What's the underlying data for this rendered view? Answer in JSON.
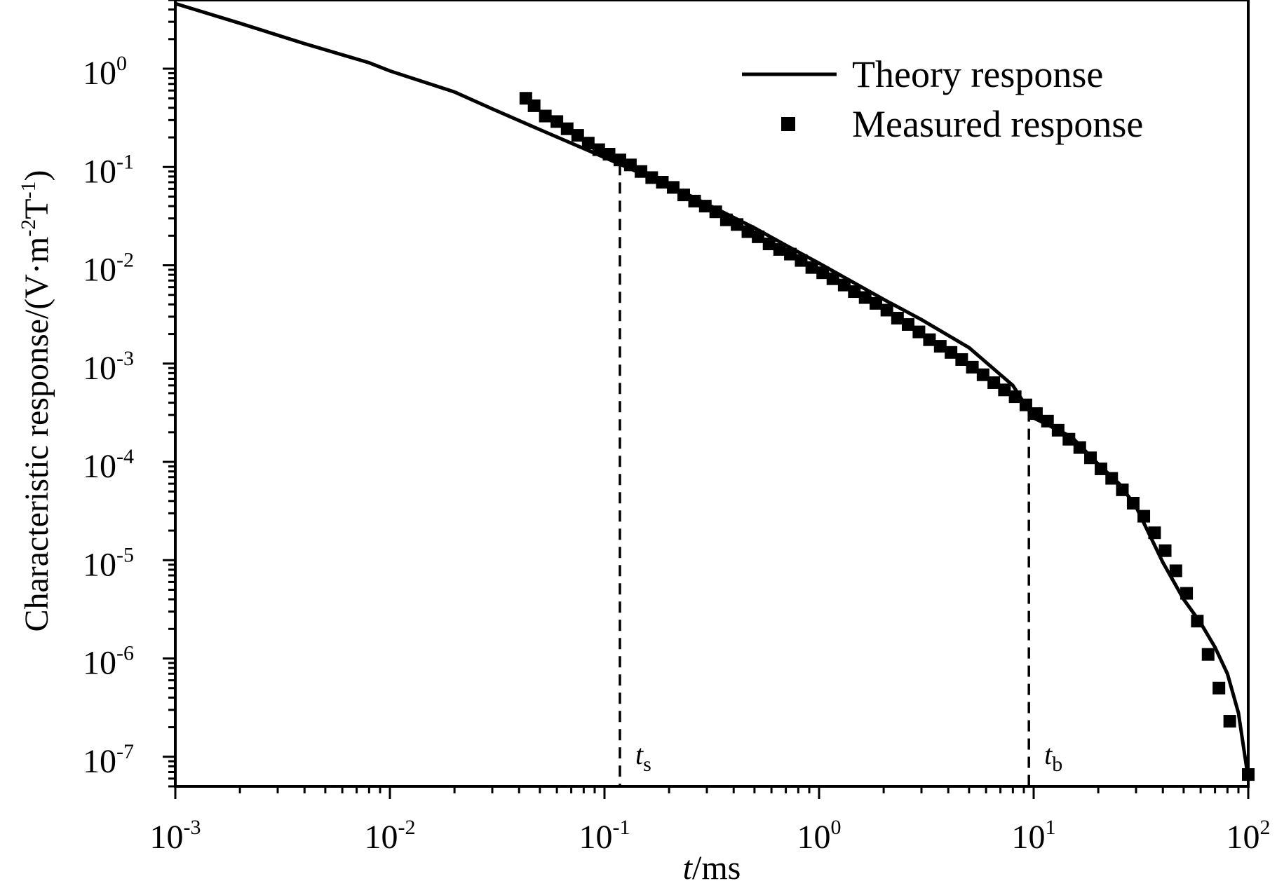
{
  "chart_data": {
    "type": "line",
    "xscale": "log",
    "yscale": "log",
    "xlim": [
      0.001,
      100
    ],
    "ylim": [
      5e-08,
      5
    ],
    "xticks": [
      {
        "base": "10",
        "exp": "-3",
        "value": 0.001
      },
      {
        "base": "10",
        "exp": "-2",
        "value": 0.01
      },
      {
        "base": "10",
        "exp": "-1",
        "value": 0.1
      },
      {
        "base": "10",
        "exp": "0",
        "value": 1
      },
      {
        "base": "10",
        "exp": "1",
        "value": 10
      },
      {
        "base": "10",
        "exp": "2",
        "value": 100
      }
    ],
    "yticks": [
      {
        "base": "10",
        "exp": "0",
        "value": 1
      },
      {
        "base": "10",
        "exp": "-1",
        "value": 0.1
      },
      {
        "base": "10",
        "exp": "-2",
        "value": 0.01
      },
      {
        "base": "10",
        "exp": "-3",
        "value": 0.001
      },
      {
        "base": "10",
        "exp": "-4",
        "value": 0.0001
      },
      {
        "base": "10",
        "exp": "-5",
        "value": 1e-05
      },
      {
        "base": "10",
        "exp": "-6",
        "value": 1e-06
      },
      {
        "base": "10",
        "exp": "-7",
        "value": 1e-07
      }
    ],
    "xlabel": {
      "italic": "t",
      "rest": "/ms"
    },
    "ylabel": {
      "main": "Characteristic response/(V·m",
      "sup1": "-2",
      "mid": "T",
      "sup2": "-1",
      "end": ")"
    },
    "grid": false,
    "legend_position": "top-right",
    "series": [
      {
        "name": "Theory response",
        "style": "line",
        "color": "#000000",
        "points": [
          [
            0.001,
            4.6
          ],
          [
            0.002,
            2.9
          ],
          [
            0.004,
            1.8
          ],
          [
            0.008,
            1.15
          ],
          [
            0.01,
            0.95
          ],
          [
            0.02,
            0.58
          ],
          [
            0.03,
            0.39
          ],
          [
            0.05,
            0.24
          ],
          [
            0.1,
            0.125
          ],
          [
            0.15,
            0.085
          ],
          [
            0.2,
            0.065
          ],
          [
            0.3,
            0.042
          ],
          [
            0.5,
            0.024
          ],
          [
            0.7,
            0.016
          ],
          [
            1,
            0.0105
          ],
          [
            2,
            0.0045
          ],
          [
            3,
            0.0028
          ],
          [
            5,
            0.00145
          ],
          [
            8,
            0.0006
          ],
          [
            10,
            0.00028
          ],
          [
            15,
            0.00018
          ],
          [
            20,
            9.5e-05
          ],
          [
            25,
            6e-05
          ],
          [
            30,
            3.5e-05
          ],
          [
            40,
            9.5e-06
          ],
          [
            50,
            4e-06
          ],
          [
            60,
            2.3e-06
          ],
          [
            70,
            1.3e-06
          ],
          [
            80,
            7e-07
          ],
          [
            90,
            2.8e-07
          ],
          [
            100,
            6e-08
          ]
        ]
      },
      {
        "name": "Measured response",
        "style": "markers",
        "marker": "square",
        "color": "#000000",
        "points": [
          [
            0.043,
            0.5
          ],
          [
            0.047,
            0.42
          ],
          [
            0.053,
            0.33
          ],
          [
            0.06,
            0.29
          ],
          [
            0.067,
            0.245
          ],
          [
            0.075,
            0.21
          ],
          [
            0.084,
            0.175
          ],
          [
            0.094,
            0.15
          ],
          [
            0.105,
            0.135
          ],
          [
            0.118,
            0.118
          ],
          [
            0.132,
            0.105
          ],
          [
            0.148,
            0.09
          ],
          [
            0.166,
            0.078
          ],
          [
            0.186,
            0.07
          ],
          [
            0.209,
            0.062
          ],
          [
            0.234,
            0.052
          ],
          [
            0.263,
            0.045
          ],
          [
            0.295,
            0.04
          ],
          [
            0.33,
            0.035
          ],
          [
            0.37,
            0.029
          ],
          [
            0.415,
            0.026
          ],
          [
            0.466,
            0.022
          ],
          [
            0.52,
            0.0195
          ],
          [
            0.585,
            0.0165
          ],
          [
            0.655,
            0.0145
          ],
          [
            0.735,
            0.013
          ],
          [
            0.825,
            0.0112
          ],
          [
            0.925,
            0.0095
          ],
          [
            1.04,
            0.0084
          ],
          [
            1.16,
            0.0073
          ],
          [
            1.31,
            0.0063
          ],
          [
            1.46,
            0.0054
          ],
          [
            1.64,
            0.0047
          ],
          [
            1.84,
            0.0041
          ],
          [
            2.07,
            0.0035
          ],
          [
            2.32,
            0.0029
          ],
          [
            2.6,
            0.0025
          ],
          [
            2.92,
            0.0021
          ],
          [
            3.27,
            0.00175
          ],
          [
            3.67,
            0.0015
          ],
          [
            4.12,
            0.0013
          ],
          [
            4.62,
            0.0011
          ],
          [
            5.18,
            0.00092
          ],
          [
            5.81,
            0.00077
          ],
          [
            6.52,
            0.00064
          ],
          [
            7.31,
            0.00054
          ],
          [
            8.2,
            0.00046
          ],
          [
            9.2,
            0.00038
          ],
          [
            10.3,
            0.00031
          ],
          [
            11.6,
            0.00026
          ],
          [
            13,
            0.00021
          ],
          [
            14.6,
            0.00017
          ],
          [
            16.4,
            0.00014
          ],
          [
            18.4,
            0.00011
          ],
          [
            20.6,
            8.5e-05
          ],
          [
            23.1,
            6.8e-05
          ],
          [
            25.9,
            5.2e-05
          ],
          [
            29.1,
            3.8e-05
          ],
          [
            32.6,
            2.8e-05
          ],
          [
            36.6,
            1.9e-05
          ],
          [
            41,
            1.25e-05
          ],
          [
            46,
            7.8e-06
          ],
          [
            51.6,
            4.6e-06
          ],
          [
            57.9,
            2.4e-06
          ],
          [
            65,
            1.1e-06
          ],
          [
            73,
            5e-07
          ],
          [
            82,
            2.3e-07
          ],
          [
            100,
            6.6e-08
          ]
        ]
      }
    ],
    "vlines": [
      {
        "x": 0.118,
        "label_italic": "t",
        "label_sub": "s"
      },
      {
        "x": 9.5,
        "label_italic": "t",
        "label_sub": "b"
      }
    ]
  }
}
